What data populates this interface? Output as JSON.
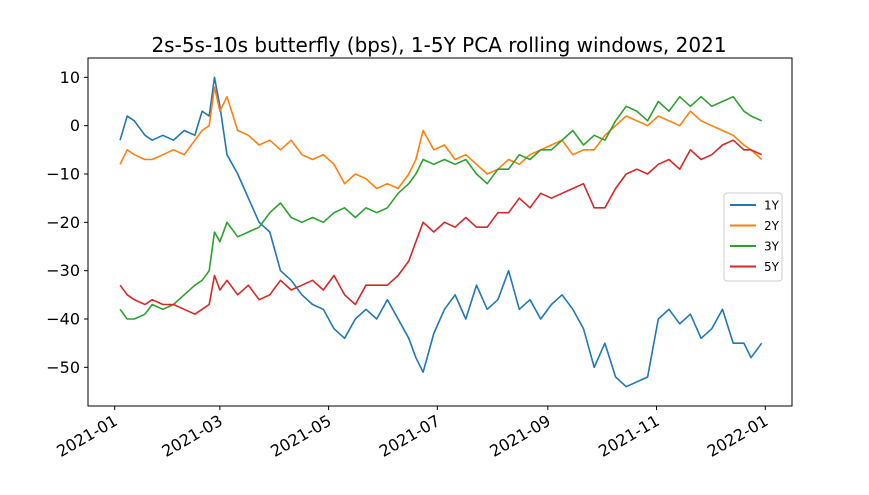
{
  "chart_data": {
    "type": "line",
    "title": "2s-5s-10s butterfly (bps), 1-5Y PCA rolling windows, 2021",
    "xlabel": "",
    "ylabel": "",
    "x_type": "date",
    "xlim": [
      "2020-12-17",
      "2022-01-16"
    ],
    "ylim": [
      -58,
      14
    ],
    "x_ticks": [
      "2021-01",
      "2021-03",
      "2021-05",
      "2021-07",
      "2021-09",
      "2021-11",
      "2022-01"
    ],
    "x_tick_dates": [
      "2021-01-01",
      "2021-03-01",
      "2021-05-01",
      "2021-07-01",
      "2021-09-01",
      "2021-11-01",
      "2022-01-01"
    ],
    "y_ticks": [
      10,
      0,
      -10,
      -20,
      -30,
      -40,
      -50
    ],
    "grid": false,
    "legend_position": "center-right",
    "series": [
      {
        "name": "1Y",
        "color": "#1f77b4",
        "x": [
          "2021-01-04",
          "2021-01-08",
          "2021-01-12",
          "2021-01-18",
          "2021-01-22",
          "2021-01-28",
          "2021-02-03",
          "2021-02-09",
          "2021-02-15",
          "2021-02-19",
          "2021-02-23",
          "2021-02-26",
          "2021-03-01",
          "2021-03-05",
          "2021-03-11",
          "2021-03-17",
          "2021-03-23",
          "2021-03-29",
          "2021-04-04",
          "2021-04-10",
          "2021-04-16",
          "2021-04-22",
          "2021-04-28",
          "2021-05-04",
          "2021-05-10",
          "2021-05-16",
          "2021-05-22",
          "2021-05-28",
          "2021-06-03",
          "2021-06-09",
          "2021-06-15",
          "2021-06-19",
          "2021-06-23",
          "2021-06-29",
          "2021-07-05",
          "2021-07-11",
          "2021-07-17",
          "2021-07-23",
          "2021-07-29",
          "2021-08-04",
          "2021-08-10",
          "2021-08-16",
          "2021-08-22",
          "2021-08-28",
          "2021-09-03",
          "2021-09-09",
          "2021-09-15",
          "2021-09-21",
          "2021-09-27",
          "2021-10-03",
          "2021-10-09",
          "2021-10-15",
          "2021-10-21",
          "2021-10-27",
          "2021-11-02",
          "2021-11-08",
          "2021-11-14",
          "2021-11-20",
          "2021-11-26",
          "2021-12-02",
          "2021-12-08",
          "2021-12-14",
          "2021-12-20",
          "2021-12-24",
          "2021-12-30"
        ],
        "values": [
          -3,
          2,
          1,
          -2,
          -3,
          -2,
          -3,
          -1,
          -2,
          3,
          2,
          10,
          4,
          -6,
          -10,
          -15,
          -20,
          -22,
          -30,
          -32,
          -35,
          -37,
          -38,
          -42,
          -44,
          -40,
          -38,
          -40,
          -36,
          -40,
          -44,
          -48,
          -51,
          -43,
          -38,
          -35,
          -40,
          -33,
          -38,
          -36,
          -30,
          -38,
          -36,
          -40,
          -37,
          -35,
          -38,
          -42,
          -50,
          -45,
          -52,
          -54,
          -53,
          -52,
          -40,
          -38,
          -41,
          -39,
          -44,
          -42,
          -38,
          -45,
          -45,
          -48,
          -45
        ]
      },
      {
        "name": "2Y",
        "color": "#ff7f0e",
        "x": [
          "2021-01-04",
          "2021-01-08",
          "2021-01-12",
          "2021-01-18",
          "2021-01-22",
          "2021-01-28",
          "2021-02-03",
          "2021-02-09",
          "2021-02-15",
          "2021-02-19",
          "2021-02-23",
          "2021-02-26",
          "2021-03-01",
          "2021-03-05",
          "2021-03-11",
          "2021-03-17",
          "2021-03-23",
          "2021-03-29",
          "2021-04-04",
          "2021-04-10",
          "2021-04-16",
          "2021-04-22",
          "2021-04-28",
          "2021-05-04",
          "2021-05-10",
          "2021-05-16",
          "2021-05-22",
          "2021-05-28",
          "2021-06-03",
          "2021-06-09",
          "2021-06-15",
          "2021-06-19",
          "2021-06-23",
          "2021-06-29",
          "2021-07-05",
          "2021-07-11",
          "2021-07-17",
          "2021-07-23",
          "2021-07-29",
          "2021-08-04",
          "2021-08-10",
          "2021-08-16",
          "2021-08-22",
          "2021-08-28",
          "2021-09-03",
          "2021-09-09",
          "2021-09-15",
          "2021-09-21",
          "2021-09-27",
          "2021-10-03",
          "2021-10-09",
          "2021-10-15",
          "2021-10-21",
          "2021-10-27",
          "2021-11-02",
          "2021-11-08",
          "2021-11-14",
          "2021-11-20",
          "2021-11-26",
          "2021-12-02",
          "2021-12-08",
          "2021-12-14",
          "2021-12-20",
          "2021-12-24",
          "2021-12-30"
        ],
        "values": [
          -8,
          -5,
          -6,
          -7,
          -7,
          -6,
          -5,
          -6,
          -3,
          -1,
          0,
          8,
          3,
          6,
          -1,
          -2,
          -4,
          -3,
          -5,
          -3,
          -6,
          -7,
          -6,
          -8,
          -12,
          -10,
          -11,
          -13,
          -12,
          -13,
          -10,
          -7,
          -1,
          -5,
          -4,
          -7,
          -6,
          -8,
          -10,
          -9,
          -7,
          -8,
          -6,
          -5,
          -4,
          -3,
          -6,
          -5,
          -5,
          -2,
          0,
          2,
          1,
          0,
          2,
          1,
          0,
          3,
          1,
          0,
          -1,
          -2,
          -4,
          -5,
          -7
        ]
      },
      {
        "name": "3Y",
        "color": "#2ca02c",
        "x": [
          "2021-01-04",
          "2021-01-08",
          "2021-01-12",
          "2021-01-18",
          "2021-01-22",
          "2021-01-28",
          "2021-02-03",
          "2021-02-09",
          "2021-02-15",
          "2021-02-19",
          "2021-02-23",
          "2021-02-26",
          "2021-03-01",
          "2021-03-05",
          "2021-03-11",
          "2021-03-17",
          "2021-03-23",
          "2021-03-29",
          "2021-04-04",
          "2021-04-10",
          "2021-04-16",
          "2021-04-22",
          "2021-04-28",
          "2021-05-04",
          "2021-05-10",
          "2021-05-16",
          "2021-05-22",
          "2021-05-28",
          "2021-06-03",
          "2021-06-09",
          "2021-06-15",
          "2021-06-19",
          "2021-06-23",
          "2021-06-29",
          "2021-07-05",
          "2021-07-11",
          "2021-07-17",
          "2021-07-23",
          "2021-07-29",
          "2021-08-04",
          "2021-08-10",
          "2021-08-16",
          "2021-08-22",
          "2021-08-28",
          "2021-09-03",
          "2021-09-09",
          "2021-09-15",
          "2021-09-21",
          "2021-09-27",
          "2021-10-03",
          "2021-10-09",
          "2021-10-15",
          "2021-10-21",
          "2021-10-27",
          "2021-11-02",
          "2021-11-08",
          "2021-11-14",
          "2021-11-20",
          "2021-11-26",
          "2021-12-02",
          "2021-12-08",
          "2021-12-14",
          "2021-12-20",
          "2021-12-24",
          "2021-12-30"
        ],
        "values": [
          -38,
          -40,
          -40,
          -39,
          -37,
          -38,
          -37,
          -35,
          -33,
          -32,
          -30,
          -22,
          -24,
          -20,
          -23,
          -22,
          -21,
          -18,
          -16,
          -19,
          -20,
          -19,
          -20,
          -18,
          -17,
          -19,
          -17,
          -18,
          -17,
          -14,
          -12,
          -10,
          -7,
          -8,
          -7,
          -8,
          -7,
          -10,
          -12,
          -9,
          -9,
          -6,
          -7,
          -5,
          -5,
          -3,
          -1,
          -4,
          -2,
          -3,
          1,
          4,
          3,
          1,
          5,
          3,
          6,
          4,
          6,
          4,
          5,
          6,
          3,
          2,
          1
        ]
      },
      {
        "name": "5Y",
        "color": "#d62728",
        "x": [
          "2021-01-04",
          "2021-01-08",
          "2021-01-12",
          "2021-01-18",
          "2021-01-22",
          "2021-01-28",
          "2021-02-03",
          "2021-02-09",
          "2021-02-15",
          "2021-02-19",
          "2021-02-23",
          "2021-02-26",
          "2021-03-01",
          "2021-03-05",
          "2021-03-11",
          "2021-03-17",
          "2021-03-23",
          "2021-03-29",
          "2021-04-04",
          "2021-04-10",
          "2021-04-16",
          "2021-04-22",
          "2021-04-28",
          "2021-05-04",
          "2021-05-10",
          "2021-05-16",
          "2021-05-22",
          "2021-05-28",
          "2021-06-03",
          "2021-06-09",
          "2021-06-15",
          "2021-06-19",
          "2021-06-23",
          "2021-06-29",
          "2021-07-05",
          "2021-07-11",
          "2021-07-17",
          "2021-07-23",
          "2021-07-29",
          "2021-08-04",
          "2021-08-10",
          "2021-08-16",
          "2021-08-22",
          "2021-08-28",
          "2021-09-03",
          "2021-09-09",
          "2021-09-15",
          "2021-09-21",
          "2021-09-27",
          "2021-10-03",
          "2021-10-09",
          "2021-10-15",
          "2021-10-21",
          "2021-10-27",
          "2021-11-02",
          "2021-11-08",
          "2021-11-14",
          "2021-11-20",
          "2021-11-26",
          "2021-12-02",
          "2021-12-08",
          "2021-12-14",
          "2021-12-20",
          "2021-12-24",
          "2021-12-30"
        ],
        "values": [
          -33,
          -35,
          -36,
          -37,
          -36,
          -37,
          -37,
          -38,
          -39,
          -38,
          -37,
          -31,
          -34,
          -32,
          -35,
          -33,
          -36,
          -35,
          -32,
          -34,
          -33,
          -32,
          -34,
          -31,
          -35,
          -37,
          -33,
          -33,
          -33,
          -31,
          -28,
          -24,
          -20,
          -22,
          -20,
          -21,
          -19,
          -21,
          -21,
          -18,
          -18,
          -15,
          -17,
          -14,
          -15,
          -14,
          -13,
          -12,
          -17,
          -17,
          -13,
          -10,
          -9,
          -10,
          -8,
          -7,
          -9,
          -5,
          -7,
          -6,
          -4,
          -3,
          -5,
          -5,
          -6
        ]
      }
    ]
  }
}
